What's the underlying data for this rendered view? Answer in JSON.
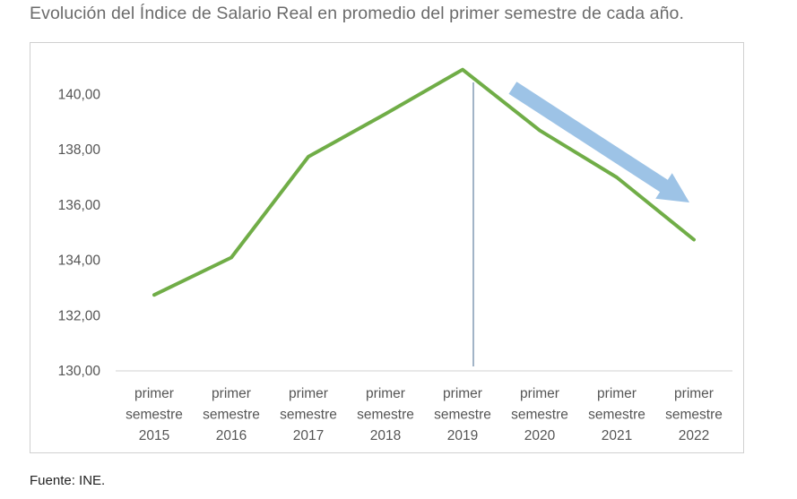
{
  "title": "Evolución del Índice de Salario Real en promedio del primer semestre de cada año.",
  "source": "Fuente: INE.",
  "chart_data": {
    "type": "line",
    "title": "",
    "xlabel": "",
    "ylabel": "",
    "categories": [
      [
        "primer",
        "semestre",
        "2015"
      ],
      [
        "primer",
        "semestre",
        "2016"
      ],
      [
        "primer",
        "semestre",
        "2017"
      ],
      [
        "primer",
        "semestre",
        "2018"
      ],
      [
        "primer",
        "semestre",
        "2019"
      ],
      [
        "primer",
        "semestre",
        "2020"
      ],
      [
        "primer",
        "semestre",
        "2021"
      ],
      [
        "primer",
        "semestre",
        "2022"
      ]
    ],
    "series": [
      {
        "values": [
          132.75,
          134.1,
          137.75,
          139.3,
          140.9,
          138.7,
          137.0,
          134.75
        ],
        "color": "#70ad47"
      }
    ],
    "ylim": [
      130,
      141
    ],
    "yticks": [
      "130,00",
      "132,00",
      "134,00",
      "136,00",
      "138,00",
      "140,00"
    ],
    "grid": false,
    "legend": "none",
    "annotations": [
      {
        "type": "vertical-line",
        "at_category": 4,
        "color": "#44698f"
      },
      {
        "type": "arrow",
        "direction": "down-right",
        "from_category": 4.65,
        "to_category": 7.0,
        "color": "#9dc3e6"
      }
    ]
  }
}
